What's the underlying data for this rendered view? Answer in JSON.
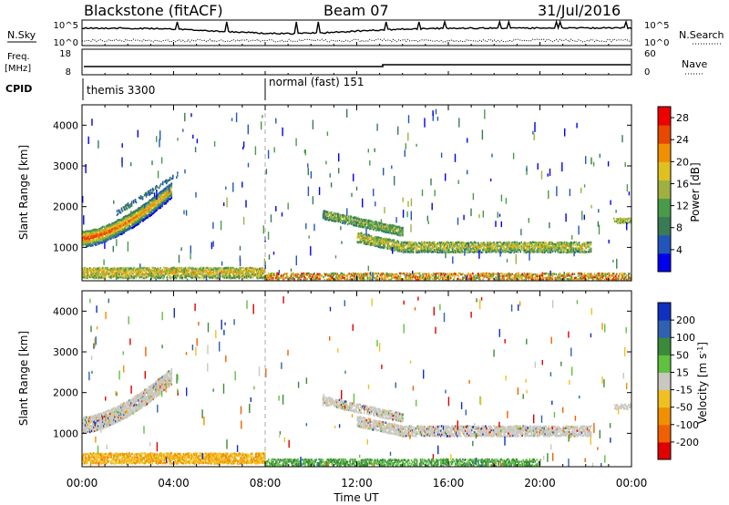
{
  "header": {
    "radar": "Blackstone (fitACF)",
    "beam": "Beam 07",
    "date": "31/Jul/2016"
  },
  "summary": {
    "nsky_label": "N.Sky",
    "nsearch_label": "N.Search",
    "noise_ticks_left": [
      "10^5",
      "10^0"
    ],
    "noise_ticks_right": [
      "10^5",
      "10^0"
    ],
    "freq_label_1": "Freq.",
    "freq_label_2": "[MHz]",
    "freq_ticks": [
      "18",
      "8"
    ],
    "nave_label": "Nave",
    "nave_ticks": [
      "60",
      "0"
    ],
    "cpid_label": "CPID",
    "cpid_segments": [
      {
        "label": "themis 3300",
        "start_hour": 0
      },
      {
        "label": "normal (fast) 151",
        "start_hour": 8
      }
    ]
  },
  "chart_data": [
    {
      "type": "heatmap",
      "title": "",
      "xlabel": "Time UT",
      "ylabel": "Slant Range [km]",
      "xlim": [
        0,
        24
      ],
      "ylim": [
        180,
        4500
      ],
      "yticks": [
        "1000",
        "2000",
        "3000",
        "4000"
      ],
      "xticks": [
        "00:00",
        "04:00",
        "08:00",
        "12:00",
        "16:00",
        "20:00",
        "00:00"
      ],
      "colorbar": {
        "label": "Power [dB]",
        "ticks": [
          "4",
          "8",
          "12",
          "16",
          "20",
          "24",
          "28"
        ],
        "range": [
          0,
          30
        ],
        "colors": [
          "#0000ee",
          "#2255bb",
          "#3a7a55",
          "#4a9a4a",
          "#a0b040",
          "#e0c020",
          "#f09000",
          "#e84800",
          "#ee0000"
        ]
      },
      "features": [
        {
          "name": "backscatter band 00-04 UT",
          "t_start": 0.0,
          "t_end": 4.0,
          "range_start_km": 1250,
          "range_end_km": 2500,
          "peak_power_db": 28
        },
        {
          "name": "near-range scatter 00-08 UT",
          "t_start": 0.0,
          "t_end": 8.0,
          "range_km": 400,
          "peak_power_db": 20
        },
        {
          "name": "evening band 10-13 UT",
          "t_start": 10.5,
          "t_end": 14.0,
          "range_start_km": 1850,
          "range_end_km": 1550,
          "peak_power_db": 16
        },
        {
          "name": "band 12-22 UT",
          "t_start": 12.0,
          "t_end": 22.0,
          "range_km": 1050,
          "peak_power_db": 20
        },
        {
          "name": "near-range scatter 08-24 UT",
          "t_start": 8.0,
          "t_end": 24.0,
          "range_km": 350,
          "peak_power_db": 24
        }
      ]
    },
    {
      "type": "heatmap",
      "title": "",
      "xlabel": "Time UT",
      "ylabel": "Slant Range [km]",
      "xlim": [
        0,
        24
      ],
      "ylim": [
        180,
        4500
      ],
      "yticks": [
        "1000",
        "2000",
        "3000",
        "4000"
      ],
      "xticks": [
        "00:00",
        "04:00",
        "08:00",
        "12:00",
        "16:00",
        "20:00",
        "00:00"
      ],
      "colorbar": {
        "label": "Velocity [m s^-1]",
        "ticks": [
          "200",
          "100",
          "50",
          "15",
          "-15",
          "-50",
          "-100",
          "-200"
        ],
        "range": [
          -250,
          250
        ],
        "colors": [
          "#1030c0",
          "#3060b0",
          "#3a8a3a",
          "#60c040",
          "#c8c8c0",
          "#f0c020",
          "#f09000",
          "#f06000",
          "#e00000"
        ]
      },
      "features": [
        {
          "name": "ground scatter 00-04 UT",
          "t_start": 0.0,
          "t_end": 4.0,
          "range_start_km": 1250,
          "range_end_km": 2500,
          "velocity": "-15 to 15"
        },
        {
          "name": "near-range 00-08 UT",
          "t_start": 0.0,
          "t_end": 8.0,
          "range_km": 400,
          "velocity": "-50 to -15"
        },
        {
          "name": "band 10-22 UT",
          "t_start": 10.5,
          "t_end": 22.0,
          "range_km": 1100,
          "velocity": "-15 to 15"
        },
        {
          "name": "near-range 08-20 UT",
          "t_start": 8.0,
          "t_end": 20.0,
          "range_km": 350,
          "velocity": "15 to 100"
        }
      ]
    }
  ]
}
